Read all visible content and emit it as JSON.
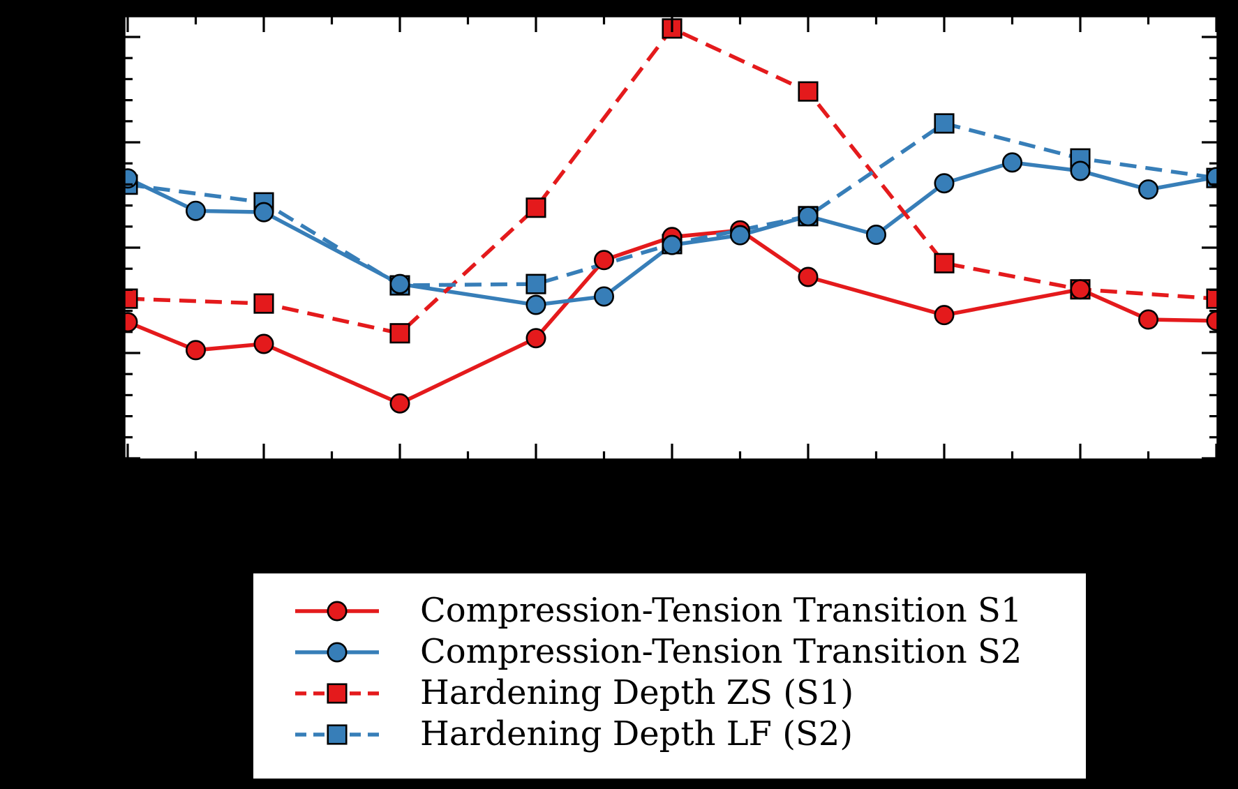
{
  "figure": {
    "background_color": "#000000",
    "plot_background_color": "#ffffff",
    "spine_color": "#000000"
  },
  "legend": {
    "items": [
      {
        "label": "Compression-Tension Transition S1"
      },
      {
        "label": "Compression-Tension Transition S2"
      },
      {
        "label": "Hardening Depth ZS (S1)"
      },
      {
        "label": "Hardening Depth LF (S2)"
      }
    ]
  },
  "chart_data": {
    "type": "line",
    "title": "",
    "xlabel": "",
    "ylabel": "",
    "tick_labels_visible": false,
    "x_units": "sample position index; major ticks at even indices, minor at odd",
    "y_units": "fraction of y-axis height (axis labels not visible in image)",
    "x_range": [
      0,
      16
    ],
    "y_range": [
      0,
      1
    ],
    "grid": false,
    "legend_position": "below plot, boxed",
    "series": [
      {
        "name": "Compression-Tension Transition S1",
        "color": "#e41a1c",
        "line": "solid",
        "marker": "circle",
        "x": [
          0,
          1,
          2,
          4,
          6,
          7,
          8,
          9,
          10,
          12,
          14,
          15,
          16
        ],
        "y": [
          0.31,
          0.247,
          0.261,
          0.127,
          0.274,
          0.45,
          0.502,
          0.517,
          0.412,
          0.326,
          0.384,
          0.316,
          0.313
        ]
      },
      {
        "name": "Compression-Tension Transition S2",
        "color": "#377eb8",
        "line": "solid",
        "marker": "circle",
        "x": [
          0,
          1,
          2,
          4,
          6,
          7,
          8,
          9,
          10,
          11,
          12,
          13,
          14,
          15,
          16
        ],
        "y": [
          0.634,
          0.561,
          0.558,
          0.396,
          0.349,
          0.368,
          0.484,
          0.506,
          0.549,
          0.507,
          0.623,
          0.67,
          0.651,
          0.609,
          0.637
        ]
      },
      {
        "name": "Hardening Depth ZS (S1)",
        "color": "#e41a1c",
        "line": "dashed",
        "marker": "square",
        "x": [
          0,
          2,
          4,
          6,
          8,
          10,
          12,
          14,
          16
        ],
        "y": [
          0.363,
          0.352,
          0.285,
          0.568,
          0.972,
          0.83,
          0.443,
          0.384,
          0.363
        ]
      },
      {
        "name": "Hardening Depth LF (S2)",
        "color": "#377eb8",
        "line": "dashed",
        "marker": "square",
        "x": [
          0,
          2,
          4,
          6,
          8,
          10,
          12,
          14,
          16
        ],
        "y": [
          0.62,
          0.58,
          0.393,
          0.396,
          0.486,
          0.549,
          0.758,
          0.679,
          0.635
        ]
      }
    ]
  }
}
